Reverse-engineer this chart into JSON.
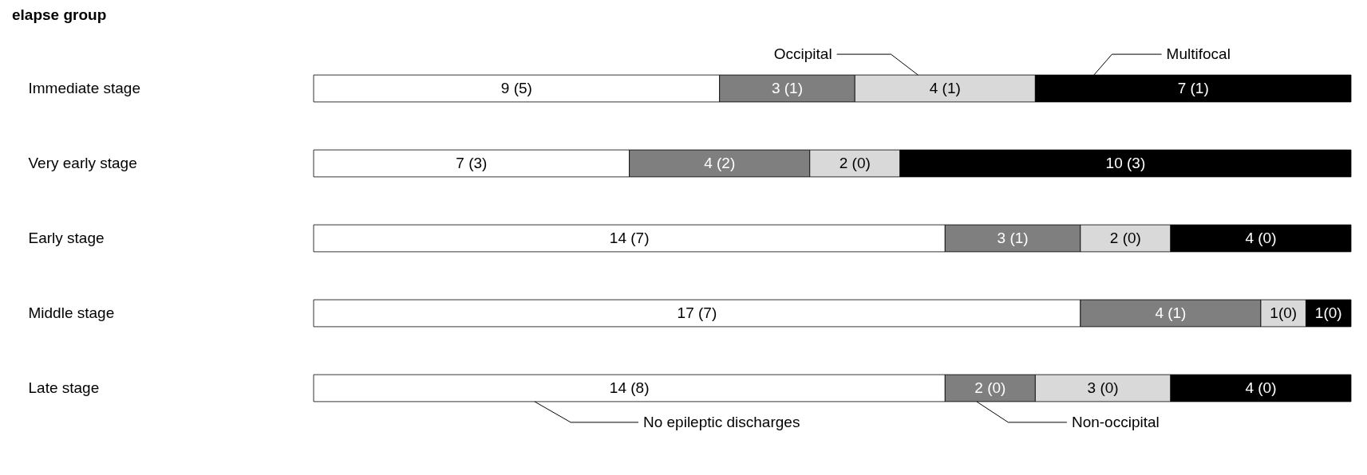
{
  "chart_data": {
    "type": "bar",
    "orientation": "horizontal",
    "stacked": true,
    "title": "elapse group",
    "legend": false,
    "categories": [
      "Immediate stage",
      "Very early stage",
      "Early stage",
      "Middle stage",
      "Late stage"
    ],
    "series": [
      {
        "name": "No epileptic discharges",
        "color": "#ffffff",
        "values": [
          9,
          7,
          14,
          17,
          14
        ],
        "value_labels": [
          "9 (5)",
          "7 (3)",
          "14 (7)",
          "17 (7)",
          "14 (8)"
        ]
      },
      {
        "name": "Non-occipital",
        "color": "#7f7f7f",
        "values": [
          3,
          4,
          3,
          4,
          2
        ],
        "value_labels": [
          "3 (1)",
          "4 (2)",
          "3 (1)",
          "4 (1)",
          "2 (0)"
        ]
      },
      {
        "name": "Occipital",
        "color": "#d9d9d9",
        "values": [
          4,
          2,
          2,
          1,
          3
        ],
        "value_labels": [
          "4 (1)",
          "2 (0)",
          "2 (0)",
          "1(0)",
          "3 (0)"
        ]
      },
      {
        "name": "Multifocal",
        "color": "#000000",
        "values": [
          7,
          10,
          4,
          1,
          4
        ],
        "value_labels": [
          "7 (1)",
          "10 (3)",
          "4 (0)",
          "1(0)",
          "4 (0)"
        ]
      }
    ]
  }
}
